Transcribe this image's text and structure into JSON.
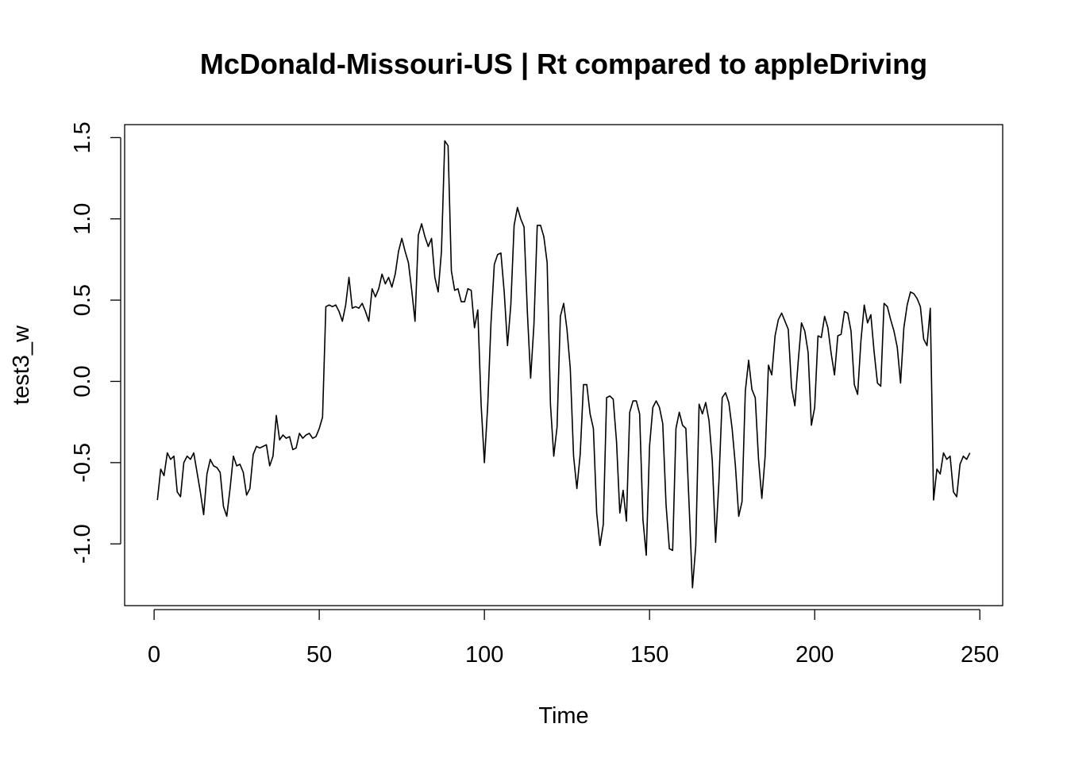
{
  "chart_data": {
    "type": "line",
    "title": "McDonald-Missouri-US | Rt compared to appleDriving",
    "xlabel": "Time",
    "ylabel": "test3_w",
    "xlim": [
      -8.92,
      256.92
    ],
    "ylim": [
      -1.38,
      1.58
    ],
    "xticks": [
      0,
      50,
      100,
      150,
      200,
      250
    ],
    "xtick_labels": [
      "0",
      "50",
      "100",
      "150",
      "200",
      "250"
    ],
    "yticks": [
      -1.0,
      -0.5,
      0.0,
      0.5,
      1.0,
      1.5
    ],
    "ytick_labels": [
      "-1.0",
      "-0.5",
      "0.0",
      "0.5",
      "1.0",
      "1.5"
    ],
    "grid": false,
    "line_color": "#000000",
    "series": [
      {
        "x_start": 1,
        "values": [
          -0.73,
          -0.54,
          -0.58,
          -0.44,
          -0.48,
          -0.46,
          -0.68,
          -0.71,
          -0.5,
          -0.46,
          -0.48,
          -0.44,
          -0.56,
          -0.68,
          -0.82,
          -0.57,
          -0.48,
          -0.52,
          -0.53,
          -0.56,
          -0.77,
          -0.83,
          -0.66,
          -0.46,
          -0.52,
          -0.51,
          -0.56,
          -0.7,
          -0.66,
          -0.45,
          -0.4,
          -0.41,
          -0.4,
          -0.39,
          -0.52,
          -0.46,
          -0.21,
          -0.36,
          -0.33,
          -0.35,
          -0.34,
          -0.42,
          -0.41,
          -0.32,
          -0.35,
          -0.33,
          -0.32,
          -0.35,
          -0.34,
          -0.29,
          -0.22,
          0.46,
          0.47,
          0.46,
          0.47,
          0.43,
          0.37,
          0.47,
          0.64,
          0.45,
          0.46,
          0.45,
          0.48,
          0.43,
          0.37,
          0.57,
          0.52,
          0.57,
          0.66,
          0.6,
          0.64,
          0.58,
          0.66,
          0.8,
          0.88,
          0.8,
          0.73,
          0.56,
          0.37,
          0.9,
          0.97,
          0.89,
          0.83,
          0.88,
          0.64,
          0.55,
          0.8,
          1.48,
          1.45,
          0.68,
          0.56,
          0.57,
          0.49,
          0.49,
          0.57,
          0.56,
          0.33,
          0.44,
          -0.14,
          -0.5,
          -0.15,
          0.36,
          0.72,
          0.78,
          0.79,
          0.55,
          0.22,
          0.47,
          0.96,
          1.07,
          1.0,
          0.95,
          0.43,
          0.02,
          0.35,
          0.96,
          0.96,
          0.89,
          0.73,
          -0.14,
          -0.46,
          -0.28,
          0.4,
          0.48,
          0.32,
          0.08,
          -0.46,
          -0.66,
          -0.45,
          -0.02,
          -0.02,
          -0.2,
          -0.29,
          -0.81,
          -1.01,
          -0.88,
          -0.1,
          -0.09,
          -0.11,
          -0.37,
          -0.81,
          -0.67,
          -0.86,
          -0.19,
          -0.12,
          -0.12,
          -0.2,
          -0.85,
          -1.07,
          -0.4,
          -0.16,
          -0.12,
          -0.16,
          -0.26,
          -0.76,
          -1.03,
          -1.04,
          -0.29,
          -0.19,
          -0.27,
          -0.29,
          -0.77,
          -1.27,
          -1.01,
          -0.14,
          -0.2,
          -0.13,
          -0.24,
          -0.49,
          -0.99,
          -0.62,
          -0.1,
          -0.07,
          -0.13,
          -0.29,
          -0.52,
          -0.83,
          -0.74,
          -0.06,
          0.13,
          -0.05,
          -0.1,
          -0.48,
          -0.72,
          -0.46,
          0.1,
          0.04,
          0.28,
          0.38,
          0.42,
          0.37,
          0.32,
          -0.04,
          -0.15,
          0.12,
          0.36,
          0.31,
          0.18,
          -0.27,
          -0.16,
          0.28,
          0.27,
          0.4,
          0.33,
          0.17,
          0.04,
          0.28,
          0.29,
          0.43,
          0.42,
          0.31,
          -0.02,
          -0.08,
          0.25,
          0.47,
          0.36,
          0.41,
          0.18,
          -0.01,
          -0.03,
          0.48,
          0.46,
          0.38,
          0.31,
          0.21,
          -0.01,
          0.33,
          0.47,
          0.55,
          0.54,
          0.51,
          0.46,
          0.26,
          0.22,
          0.45,
          -0.73,
          -0.54,
          -0.57,
          -0.44,
          -0.48,
          -0.46,
          -0.68,
          -0.71,
          -0.51,
          -0.46,
          -0.48,
          -0.44
        ]
      }
    ]
  }
}
